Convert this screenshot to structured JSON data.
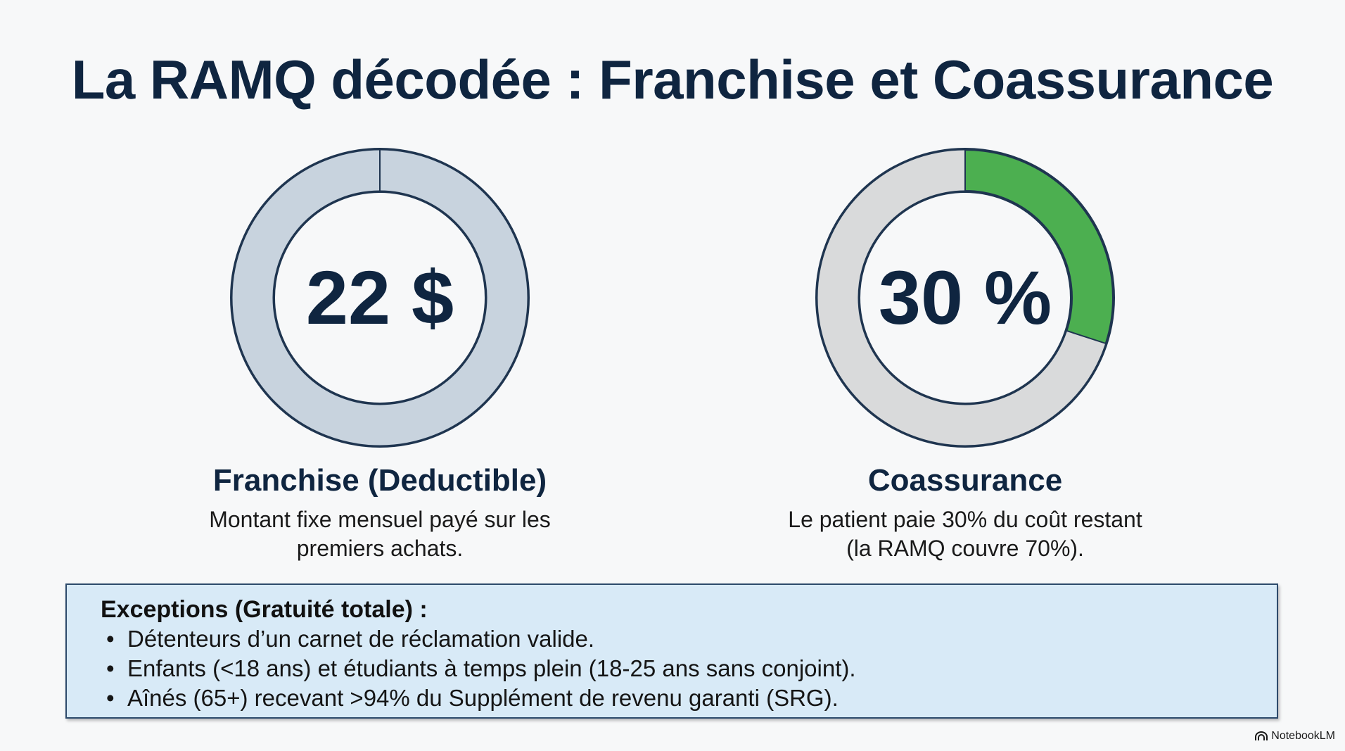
{
  "title": "La RAMQ décodée : Franchise et Coassurance",
  "panels": {
    "franchise": {
      "value": "22 $",
      "heading": "Franchise (Deductible)",
      "desc_line1": "Montant fixe mensuel payé sur les",
      "desc_line2": "premiers achats.",
      "ring_color": "#c8d3de",
      "filled_fraction": 1.0
    },
    "coassurance": {
      "value": "30 %",
      "heading": "Coassurance",
      "desc_line1": "Le patient paie 30% du coût restant",
      "desc_line2": "(la RAMQ couvre 70%).",
      "ring_color": "#d9dadb",
      "accent_color": "#4caf50",
      "filled_fraction": 0.3
    }
  },
  "exceptions": {
    "title": "Exceptions (Gratuité totale) :",
    "items": [
      "Détenteurs d’un carnet de réclamation valide.",
      "Enfants (<18 ans) et étudiants à temps plein (18-25 ans sans conjoint).",
      "Aînés (65+) recevant >94% du Supplément de revenu garanti (SRG)."
    ]
  },
  "brand": {
    "label": "NotebookLM",
    "icon": "notebooklm-logo-icon"
  }
}
